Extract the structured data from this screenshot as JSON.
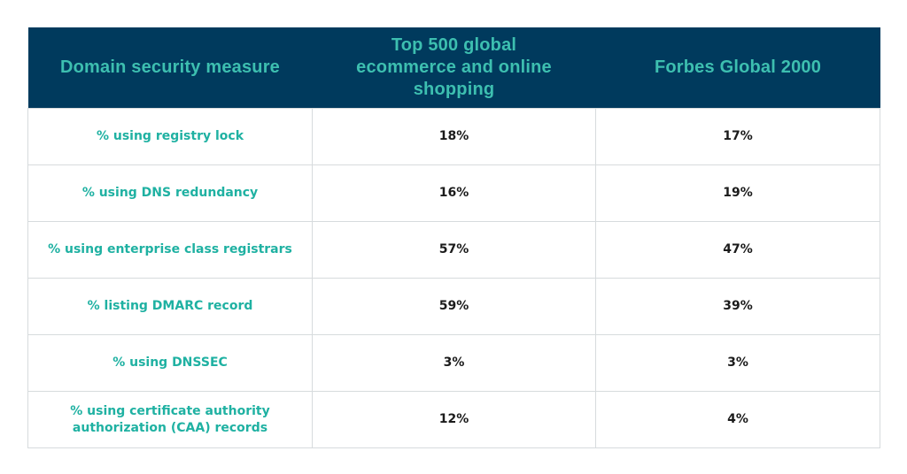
{
  "table": {
    "headers": {
      "measure": "Domain security measure",
      "ecommerce": "Top 500 global ecommerce and online shopping",
      "forbes": "Forbes Global 2000"
    },
    "rows": [
      {
        "measure": "% using registry lock",
        "ecommerce": "18%",
        "forbes": "17%"
      },
      {
        "measure": "% using DNS redundancy",
        "ecommerce": "16%",
        "forbes": "19%"
      },
      {
        "measure": "% using enterprise class registrars",
        "ecommerce": "57%",
        "forbes": "47%"
      },
      {
        "measure": "% listing DMARC record",
        "ecommerce": "59%",
        "forbes": "39%"
      },
      {
        "measure": "% using DNSSEC",
        "ecommerce": "3%",
        "forbes": "3%"
      },
      {
        "measure": "% using certificate authority authorization (CAA) records",
        "ecommerce": "12%",
        "forbes": "4%"
      }
    ]
  },
  "colors": {
    "header_background": "#003a5d",
    "header_text": "#3dbfb0",
    "measure_text": "#1fb1a2",
    "value_text": "#1b1b1b",
    "border": "#d7dbdd"
  }
}
